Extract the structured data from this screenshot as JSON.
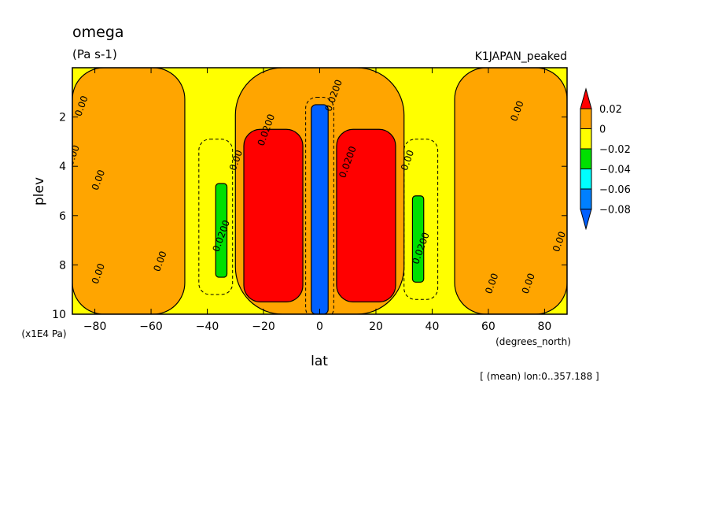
{
  "chart_data": {
    "type": "heatmap",
    "title": "omega",
    "subtitle": "(Pa s-1)",
    "experiment": "K1JAPAN_peaked",
    "xlabel": "lat",
    "xunits": "(degrees_north)",
    "ylabel": "plev",
    "yunits": "(x1E4 Pa)",
    "footnote": "[ (mean) lon:0..357.188 ]",
    "xlim": [
      -88,
      88
    ],
    "ylim": [
      10,
      0
    ],
    "x_ticks": [
      -80,
      -60,
      -40,
      -20,
      0,
      20,
      40,
      60,
      80
    ],
    "y_ticks": [
      2,
      4,
      6,
      8,
      10
    ],
    "colorbar": {
      "levels": [
        "0.02",
        "0",
        "−0.02",
        "−0.04",
        "−0.06",
        "−0.08"
      ],
      "bands": [
        {
          "range": "> 0.02",
          "color": "#ff0000"
        },
        {
          "range": "0 to 0.02",
          "color": "#ffa500"
        },
        {
          "range": "-0.02 to 0",
          "color": "#ffff00"
        },
        {
          "range": "-0.04 to -0.02",
          "color": "#00e000"
        },
        {
          "range": "-0.06 to -0.04",
          "color": "#00ffff"
        },
        {
          "range": "-0.08 to -0.06",
          "color": "#0080ff"
        },
        {
          "range": "< -0.08",
          "color": "#0060ff"
        }
      ]
    },
    "regions": [
      {
        "value_band": "0 to 0.02",
        "lat": [
          -88,
          -48
        ],
        "plev": [
          0,
          10
        ]
      },
      {
        "value_band": "0 to 0.02",
        "lat": [
          48,
          88
        ],
        "plev": [
          0,
          10
        ]
      },
      {
        "value_band": "0 to 0.02",
        "lat": [
          -30,
          30
        ],
        "plev": [
          0,
          10
        ]
      },
      {
        "value_band": "> 0.02",
        "lat": [
          -27,
          -6
        ],
        "plev": [
          2.5,
          9.5
        ]
      },
      {
        "value_band": "> 0.02",
        "lat": [
          6,
          27
        ],
        "plev": [
          2.5,
          9.5
        ]
      },
      {
        "value_band": "-0.04 to -0.02",
        "lat": [
          -37,
          -33
        ],
        "plev": [
          4.7,
          8.5
        ]
      },
      {
        "value_band": "-0.04 to -0.02",
        "lat": [
          33,
          37
        ],
        "plev": [
          5.2,
          8.7
        ]
      },
      {
        "value_band": "< -0.08",
        "lat": [
          -3,
          3
        ],
        "plev": [
          1.5,
          10
        ]
      }
    ],
    "contour_labels": [
      {
        "text": "0.00",
        "lat": -85,
        "plev": 2.0
      },
      {
        "text": "0.00",
        "lat": -88,
        "plev": 4.0
      },
      {
        "text": "0.00",
        "lat": -79,
        "plev": 5.0
      },
      {
        "text": "0.00",
        "lat": -79,
        "plev": 8.8
      },
      {
        "text": "0.00",
        "lat": -57,
        "plev": 8.3
      },
      {
        "text": "0.00",
        "lat": -30,
        "plev": 4.2
      },
      {
        "text": "0.0200",
        "lat": -20,
        "plev": 3.2
      },
      {
        "text": "0.0200",
        "lat": -36,
        "plev": 7.5
      },
      {
        "text": "0.0200",
        "lat": 4,
        "plev": 1.8
      },
      {
        "text": "0.0200",
        "lat": 9,
        "plev": 4.5
      },
      {
        "text": "0.0200",
        "lat": 35,
        "plev": 8.0
      },
      {
        "text": "0.00",
        "lat": 31,
        "plev": 4.2
      },
      {
        "text": "0.00",
        "lat": 70,
        "plev": 2.2
      },
      {
        "text": "0.00",
        "lat": 61,
        "plev": 9.2
      },
      {
        "text": "0.00",
        "lat": 74,
        "plev": 9.2
      },
      {
        "text": "0.00",
        "lat": 85,
        "plev": 7.5
      }
    ]
  }
}
